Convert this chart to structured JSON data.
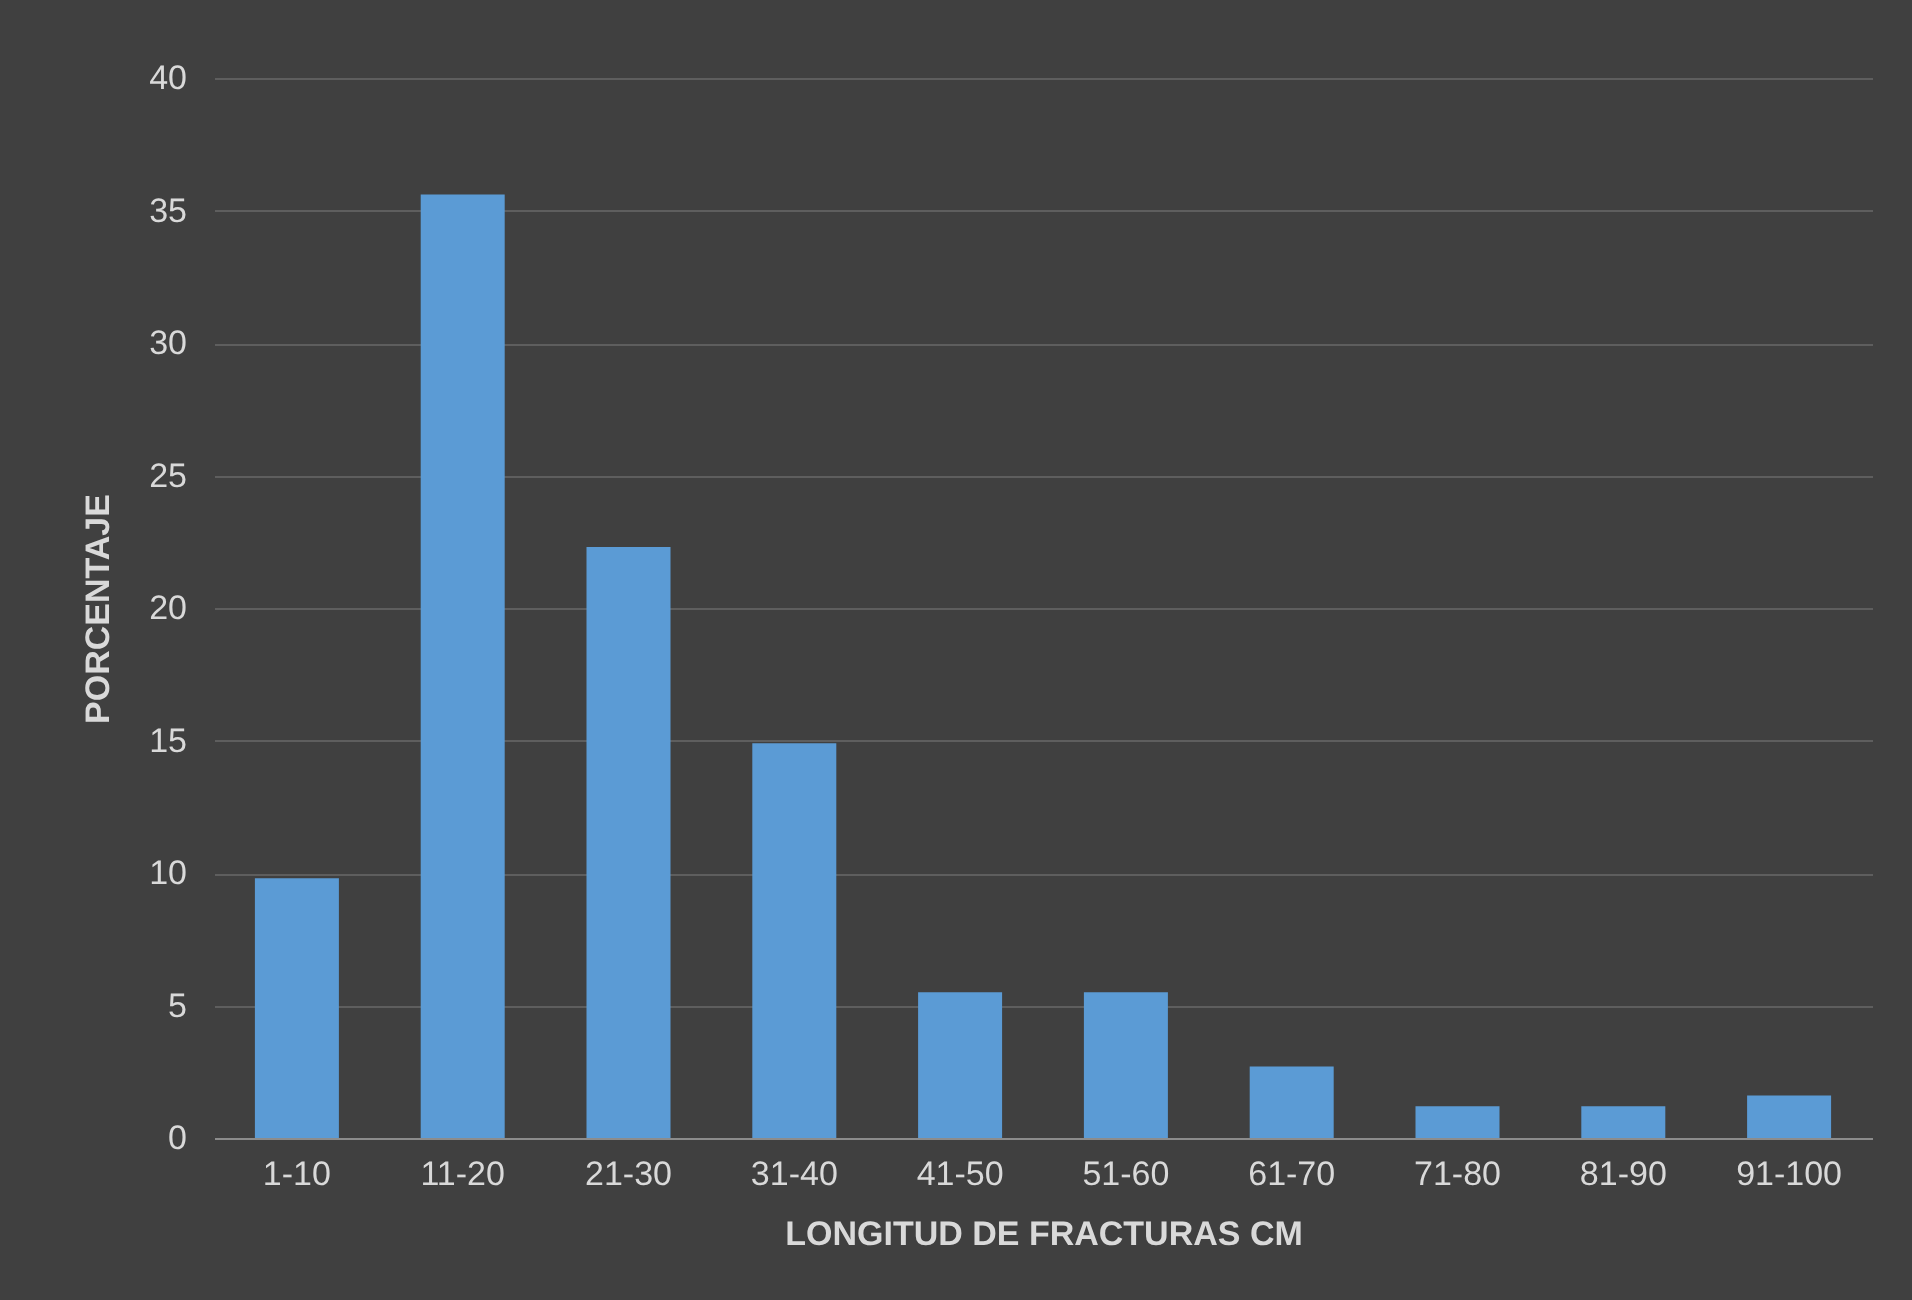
{
  "chart_data": {
    "type": "bar",
    "xlabel": "LONGITUD DE FRACTURAS CM",
    "ylabel": "PORCENTAJE",
    "categories": [
      "1-10",
      "11-20",
      "21-30",
      "31-40",
      "41-50",
      "51-60",
      "61-70",
      "71-80",
      "81-90",
      "91-100"
    ],
    "values": [
      9.8,
      35.6,
      22.3,
      14.9,
      5.5,
      5.5,
      2.7,
      1.2,
      1.2,
      1.6
    ],
    "color": "#5b9bd5",
    "ylim": [
      0,
      40
    ],
    "yticks": [
      0,
      5,
      10,
      15,
      20,
      25,
      30,
      35,
      40
    ],
    "grid": "y"
  }
}
